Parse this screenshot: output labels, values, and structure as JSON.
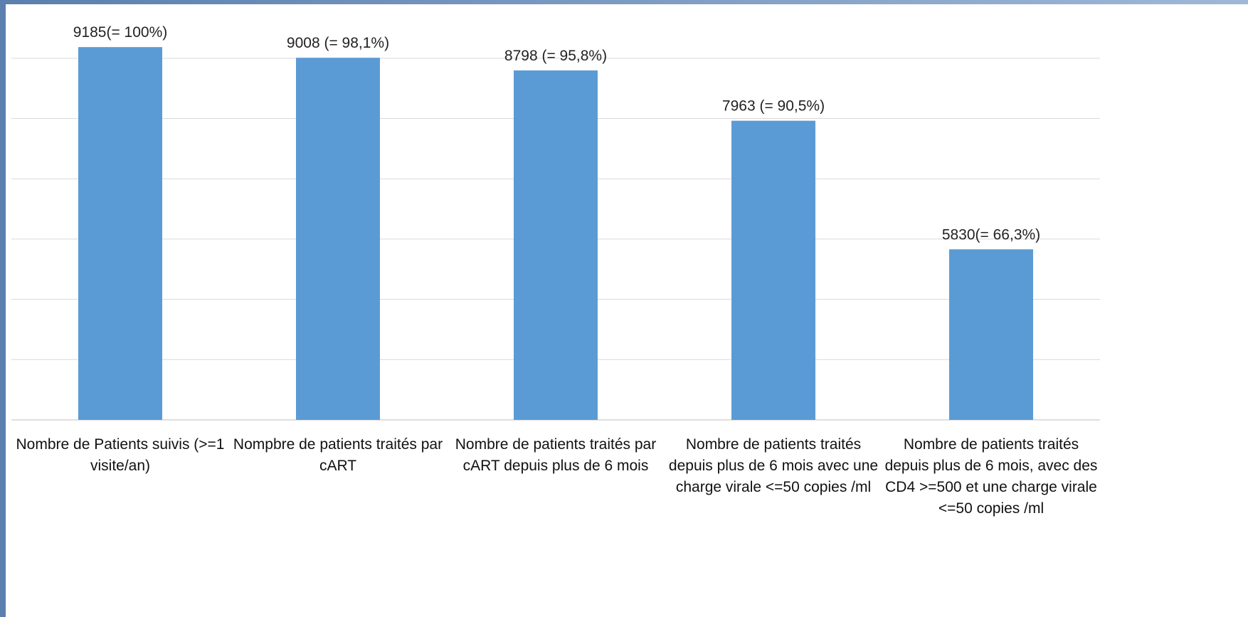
{
  "chart_data": {
    "type": "bar",
    "categories": [
      "Nombre de Patients suivis (>=1 visite/an)",
      "Nompbre de patients traités par cART",
      "Nombre de patients traités par cART depuis plus de 6 mois",
      "Nombre de patients traités depuis plus de 6 mois avec une charge virale <=50 copies /ml",
      "Nombre de patients traités depuis plus de 6 mois, avec des CD4 >=500 et une charge virale <=50 copies /ml"
    ],
    "values": [
      9185,
      9008,
      8798,
      7963,
      5830
    ],
    "value_labels": [
      "9185(= 100%)",
      "9008 (= 98,1%)",
      "8798 (= 95,8%)",
      "7963 (= 90,5%)",
      "5830(= 66,3%)"
    ],
    "color": "#5b9bd5",
    "ylim": [
      3000,
      9500
    ],
    "yticks": [
      3000,
      4000,
      5000,
      6000,
      7000,
      8000,
      9000
    ],
    "grid": true
  }
}
